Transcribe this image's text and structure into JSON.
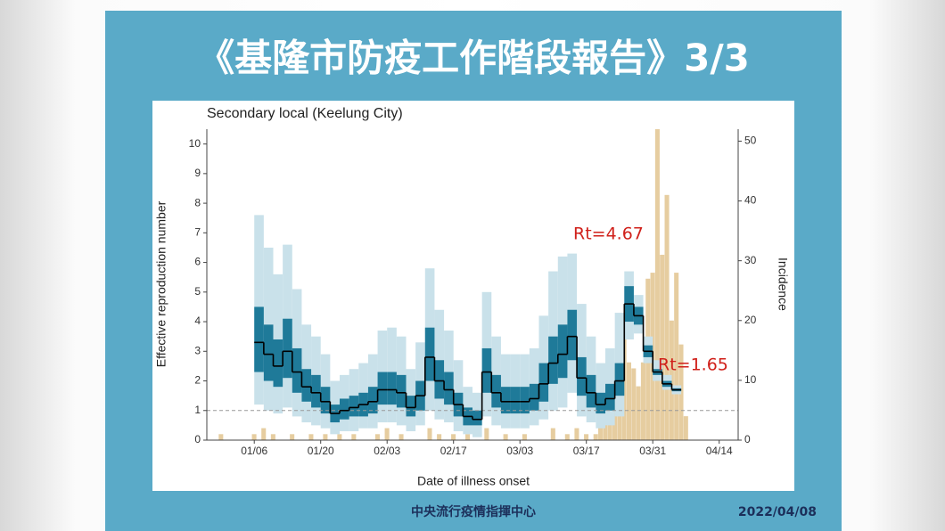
{
  "slide_title": "《基隆市防疫工作階段報告》3/3",
  "footer": {
    "org": "中央流行疫情指揮中心",
    "date": "2022/04/08"
  },
  "chart_data": {
    "type": "line",
    "title": "Secondary local (Keelung City)",
    "xlabel": "Date of illness onset",
    "ylabel": "Effective reproduction number",
    "y2label": "Incidence",
    "xlim": [
      "12/27",
      "04/18"
    ],
    "xticks": [
      "01/06",
      "01/20",
      "02/03",
      "02/17",
      "03/03",
      "03/17",
      "03/31",
      "04/14"
    ],
    "ylim": [
      0,
      10.5
    ],
    "yticks": [
      0,
      1,
      2,
      3,
      4,
      5,
      6,
      7,
      8,
      9,
      10
    ],
    "y2lim": [
      0,
      52
    ],
    "y2ticks": [
      0,
      10,
      20,
      30,
      40,
      50
    ],
    "reference_y": 1,
    "color": "#000000",
    "ci50_color": "#1f7a99",
    "ci95_color": "#c9e1ea",
    "x": [
      "01/06",
      "01/08",
      "01/10",
      "01/12",
      "01/14",
      "01/16",
      "01/18",
      "01/20",
      "01/22",
      "01/24",
      "01/26",
      "01/28",
      "01/30",
      "02/01",
      "02/03",
      "02/05",
      "02/07",
      "02/09",
      "02/11",
      "02/13",
      "02/15",
      "02/17",
      "02/19",
      "02/21",
      "02/23",
      "02/25",
      "02/27",
      "03/01",
      "03/03",
      "03/05",
      "03/07",
      "03/09",
      "03/11",
      "03/13",
      "03/15",
      "03/17",
      "03/19",
      "03/21",
      "03/23",
      "03/25",
      "03/27",
      "03/29",
      "03/31",
      "04/02",
      "04/04"
    ],
    "values": [
      3.3,
      2.9,
      2.5,
      3.0,
      2.3,
      1.8,
      1.6,
      1.3,
      0.9,
      1.0,
      1.1,
      1.2,
      1.3,
      1.7,
      1.7,
      1.6,
      1.1,
      1.5,
      2.8,
      2.0,
      1.7,
      1.2,
      0.8,
      0.7,
      2.3,
      1.6,
      1.3,
      1.3,
      1.3,
      1.4,
      1.9,
      2.6,
      2.9,
      3.5,
      2.1,
      1.6,
      1.2,
      1.4,
      2.0,
      4.6,
      4.2,
      3.0,
      2.3,
      1.9,
      1.7
    ],
    "upper50": [
      4.5,
      3.9,
      3.4,
      4.1,
      3.1,
      2.4,
      2.2,
      1.8,
      1.2,
      1.4,
      1.5,
      1.6,
      1.8,
      2.3,
      2.3,
      2.2,
      1.5,
      2.0,
      3.8,
      2.7,
      2.3,
      1.6,
      1.1,
      1.0,
      3.1,
      2.2,
      1.8,
      1.8,
      1.8,
      1.9,
      2.6,
      3.5,
      3.9,
      4.4,
      2.8,
      2.2,
      1.6,
      1.9,
      2.6,
      5.2,
      4.5,
      3.2,
      2.4,
      2.0,
      1.75
    ],
    "lower50": [
      2.3,
      2.0,
      1.8,
      2.1,
      1.6,
      1.3,
      1.1,
      0.9,
      0.6,
      0.7,
      0.8,
      0.8,
      0.9,
      1.2,
      1.2,
      1.1,
      0.8,
      1.0,
      2.0,
      1.4,
      1.2,
      0.8,
      0.5,
      0.5,
      1.6,
      1.1,
      0.9,
      0.9,
      0.9,
      1.0,
      1.3,
      1.9,
      2.1,
      2.7,
      1.5,
      1.1,
      0.9,
      1.0,
      1.5,
      4.0,
      3.9,
      2.8,
      2.2,
      1.8,
      1.65
    ],
    "upper95": [
      7.6,
      6.5,
      5.6,
      6.6,
      5.1,
      3.9,
      3.5,
      2.9,
      2.0,
      2.2,
      2.4,
      2.6,
      2.9,
      3.7,
      3.8,
      3.5,
      2.4,
      3.3,
      5.8,
      4.4,
      3.7,
      2.7,
      1.8,
      1.6,
      5.0,
      3.5,
      2.9,
      2.9,
      2.9,
      3.1,
      4.2,
      5.7,
      6.2,
      6.3,
      4.6,
      3.5,
      2.6,
      3.1,
      4.3,
      5.7,
      4.9,
      3.5,
      2.7,
      2.2,
      1.85
    ],
    "lower95": [
      1.2,
      1.0,
      0.9,
      1.1,
      0.8,
      0.6,
      0.5,
      0.4,
      0.2,
      0.3,
      0.3,
      0.4,
      0.4,
      0.6,
      0.6,
      0.5,
      0.3,
      0.5,
      1.0,
      0.7,
      0.6,
      0.3,
      0.2,
      0.1,
      0.8,
      0.5,
      0.4,
      0.4,
      0.4,
      0.5,
      0.7,
      1.0,
      1.1,
      1.6,
      0.8,
      0.6,
      0.4,
      0.5,
      0.8,
      3.4,
      3.6,
      2.6,
      2.0,
      1.7,
      1.55
    ],
    "incidence": {
      "color": "#e6cda0",
      "x": [
        "12/30",
        "01/06",
        "01/08",
        "01/10",
        "01/14",
        "01/18",
        "01/21",
        "01/24",
        "01/27",
        "02/01",
        "02/03",
        "02/06",
        "02/12",
        "02/14",
        "02/17",
        "02/20",
        "02/24",
        "02/28",
        "03/04",
        "03/10",
        "03/13",
        "03/15",
        "03/17",
        "03/19",
        "03/20",
        "03/21",
        "03/22",
        "03/23",
        "03/24",
        "03/25",
        "03/26",
        "03/27",
        "03/28",
        "03/29",
        "03/30",
        "03/31",
        "04/01",
        "04/02",
        "04/03",
        "04/04",
        "04/05",
        "04/06",
        "04/07"
      ],
      "values": [
        1,
        1,
        2,
        1,
        1,
        1,
        1,
        1,
        1,
        1,
        2,
        1,
        2,
        1,
        1,
        1,
        2,
        1,
        1,
        2,
        1,
        2,
        1,
        1,
        4,
        6,
        10,
        12,
        14,
        17,
        13,
        12,
        9,
        13,
        27,
        28,
        52,
        31,
        41,
        20,
        28,
        16,
        4
      ]
    },
    "annotations": [
      "Rt=4.67",
      "Rt=1.65"
    ]
  }
}
